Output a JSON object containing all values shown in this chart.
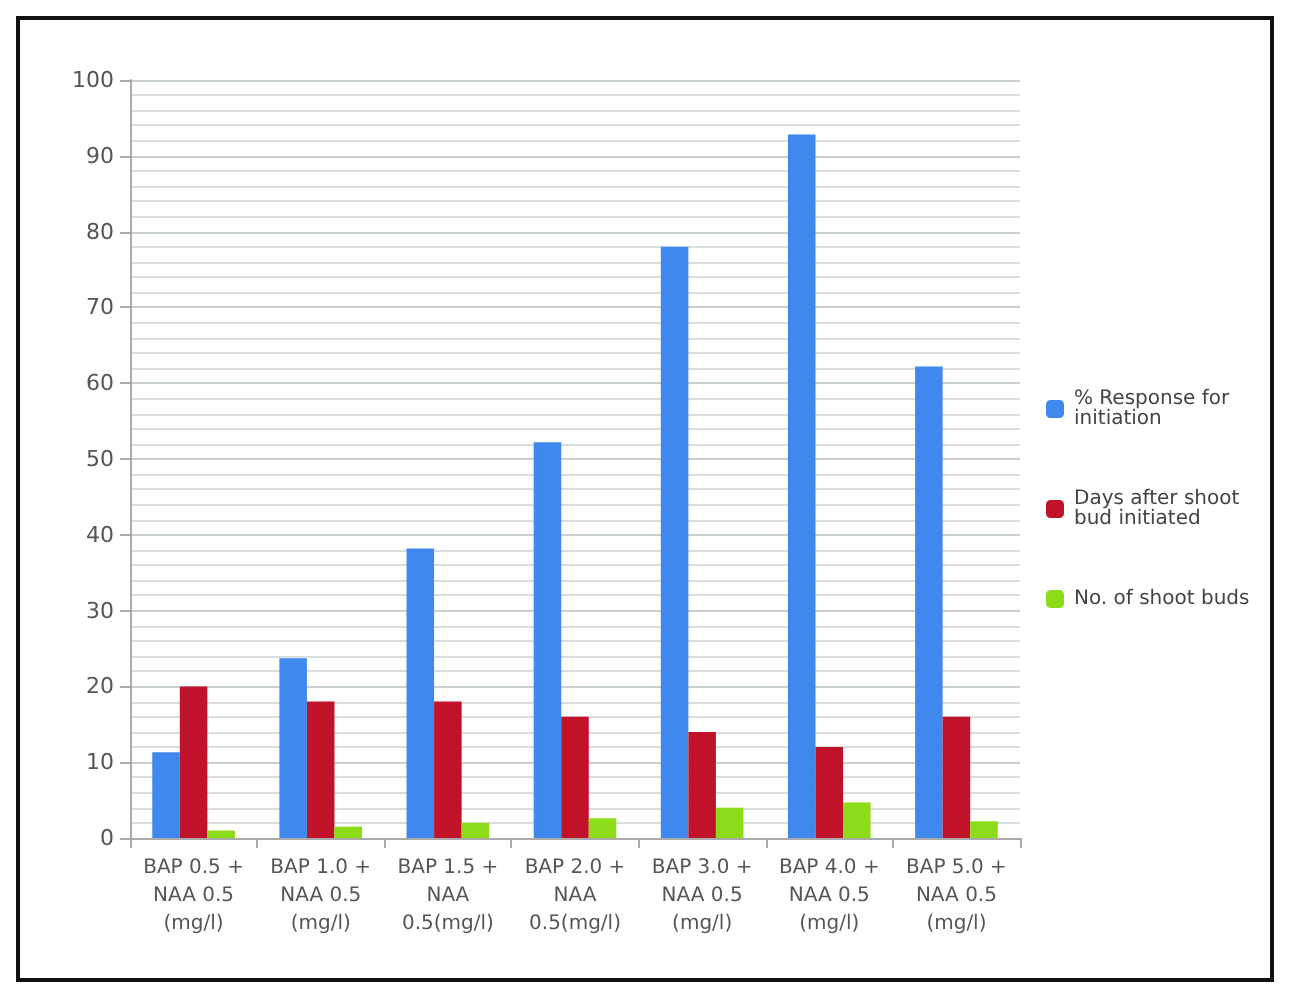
{
  "chart_data": {
    "type": "bar",
    "categories": [
      "BAP 0.5 +\nNAA 0.5\n(mg/l)",
      "BAP 1.0 +\nNAA 0.5\n(mg/l)",
      "BAP 1.5 +\nNAA\n0.5(mg/l)",
      "BAP 2.0 +\nNAA\n0.5(mg/l)",
      "BAP 3.0 +\nNAA 0.5\n(mg/l)",
      "BAP 4.0 +\nNAA 0.5\n(mg/l)",
      "BAP 5.0 +\nNAA 0.5\n(mg/l)"
    ],
    "series": [
      {
        "name": "% Response for initiation",
        "color": "#3f88ee",
        "values": [
          11.3,
          23.7,
          38.2,
          52.2,
          78,
          92.8,
          62.2
        ]
      },
      {
        "name": "Days after shoot bud initiated",
        "color": "#c0132a",
        "values": [
          20,
          18,
          18,
          16,
          14,
          12,
          16
        ]
      },
      {
        "name": "No. of shoot buds",
        "color": "#8ddc1a",
        "values": [
          1,
          1.5,
          2,
          2.6,
          4,
          4.7,
          2.2
        ]
      }
    ],
    "ylim": [
      0,
      100
    ],
    "yticks": [
      0,
      10,
      20,
      30,
      40,
      50,
      60,
      70,
      80,
      90,
      100
    ],
    "grid": "y",
    "legend": "right"
  }
}
